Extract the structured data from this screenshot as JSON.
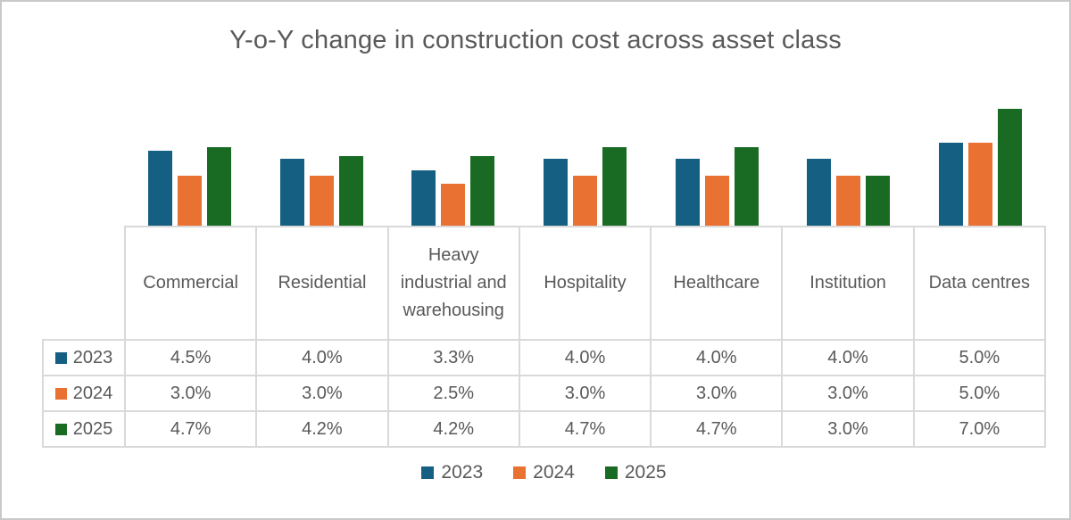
{
  "chart_data": {
    "type": "bar",
    "title": "Y-o-Y change in construction cost across asset class",
    "categories": [
      "Commercial",
      "Residential",
      "Heavy industrial and warehousing",
      "Hospitality",
      "Healthcare",
      "Institution",
      "Data centres"
    ],
    "series": [
      {
        "name": "2023",
        "color": "#156082",
        "values": [
          4.5,
          4.0,
          3.3,
          4.0,
          4.0,
          4.0,
          5.0
        ]
      },
      {
        "name": "2024",
        "color": "#E97132",
        "values": [
          3.0,
          3.0,
          2.5,
          3.0,
          3.0,
          3.0,
          5.0
        ]
      },
      {
        "name": "2025",
        "color": "#196B24",
        "values": [
          4.7,
          4.2,
          4.2,
          4.7,
          4.7,
          3.0,
          7.0
        ]
      }
    ],
    "value_suffix": "%",
    "grid": false,
    "legend_position": "bottom",
    "data_table_shown": true,
    "y_axis_shown": false
  },
  "styles": {
    "text_color": "#595959",
    "table_border_color": "#d9d9d9",
    "frame_border_color": "#c9c9c9",
    "background": "#ffffff"
  }
}
